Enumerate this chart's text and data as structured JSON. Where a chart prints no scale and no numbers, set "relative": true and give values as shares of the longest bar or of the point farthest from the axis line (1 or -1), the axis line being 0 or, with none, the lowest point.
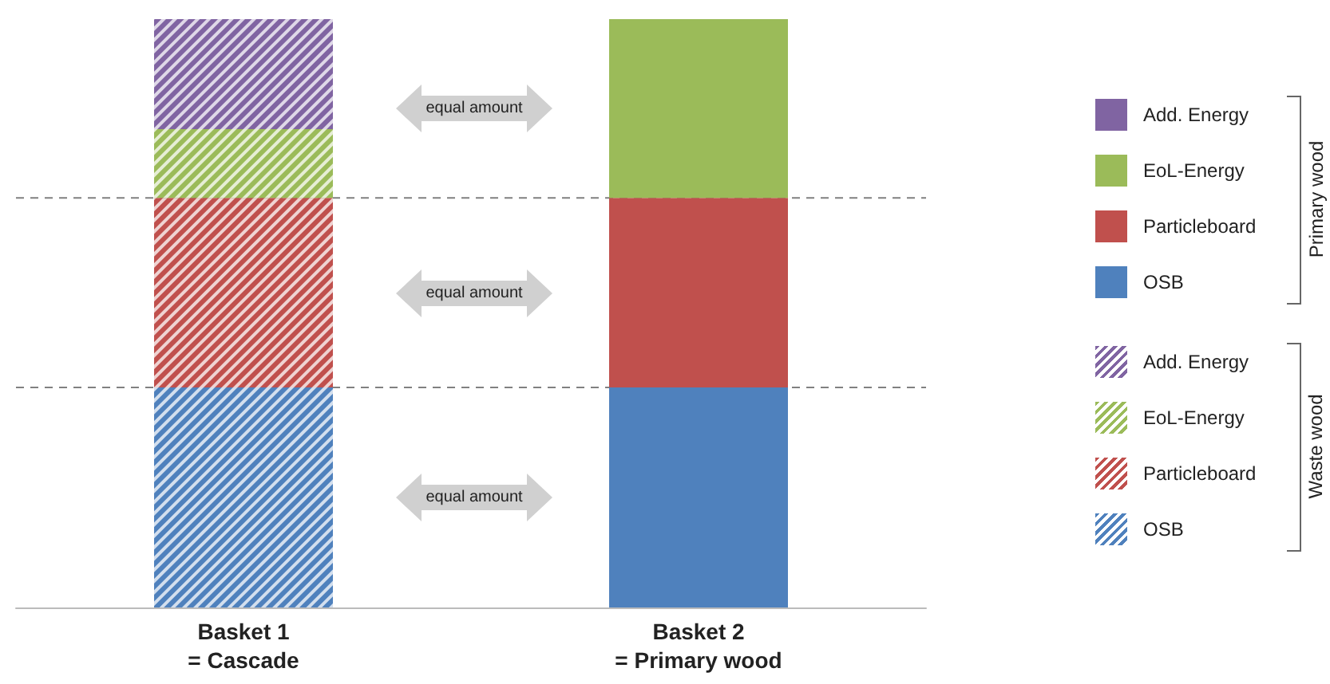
{
  "chart_data": {
    "type": "bar",
    "stacked": true,
    "relative": true,
    "categories": [
      "Basket 1\n= Cascade",
      "Basket 2\n= Primary wood"
    ],
    "series": [
      {
        "name": "OSB",
        "color": "#4f81bd",
        "values": [
          0.374,
          null
        ]
      },
      {
        "name": "Particleboard",
        "color": "#c0504d",
        "values": [
          0.322,
          null
        ]
      },
      {
        "name": "EoL-Energy",
        "color": "#9bbb59",
        "values": [
          0.117,
          null
        ]
      },
      {
        "name": "Add. Energy",
        "color": "#8064a2",
        "values": [
          0.187,
          null
        ]
      },
      {
        "name": "OSB",
        "color": "#4f81bd",
        "values": [
          null,
          0.374
        ]
      },
      {
        "name": "Particleboard",
        "color": "#c0504d",
        "values": [
          null,
          0.322
        ]
      },
      {
        "name": "EoL-Energy",
        "color": "#9bbb59",
        "values": [
          null,
          0.304
        ]
      },
      {
        "name": "Add. Energy",
        "color": "#8064a2",
        "values": [
          null,
          null
        ]
      }
    ],
    "ref_lines": [
      {
        "axis": "y",
        "value": 0.374,
        "color": "#808080",
        "line_style": "dashed"
      },
      {
        "axis": "y",
        "value": 0.696,
        "color": "#808080",
        "line_style": "dashed"
      }
    ],
    "annotations": [
      "equal amount",
      "equal amount",
      "equal amount",
      "Waste wood",
      "Primary wood"
    ],
    "legend": "right"
  }
}
